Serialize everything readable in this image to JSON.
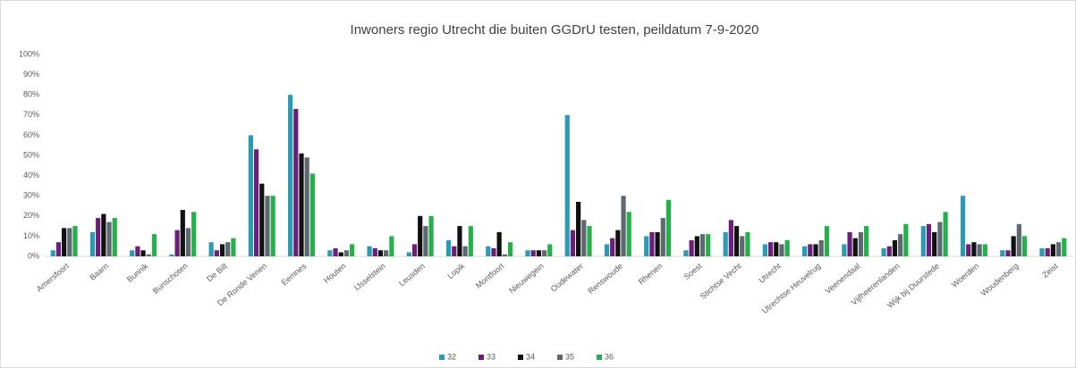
{
  "chart_data": {
    "type": "bar",
    "title": "Inwoners regio Utrecht die buiten GGDrU testen, peildatum 7-9-2020",
    "categories": [
      "Amersfoort",
      "Baarn",
      "Bunnik",
      "Bunschoten",
      "De Bilt",
      "De Ronde Venen",
      "Eemnes",
      "Houten",
      "IJsselstein",
      "Leusden",
      "Lopik",
      "Montfoort",
      "Nieuwegein",
      "Oudewater",
      "Renswoude",
      "Rhenen",
      "Soest",
      "Stichtse Vecht",
      "Utrecht",
      "Utrechtse Heuvelrug",
      "Veenendaal",
      "Vijfheerenlanden",
      "Wijk bij Duurstede",
      "Woerden",
      "Woudenberg",
      "Zeist"
    ],
    "series": [
      {
        "name": "32",
        "color": "#2b9bb3",
        "values": [
          3,
          12,
          3,
          1,
          7,
          60,
          80,
          3,
          5,
          2,
          8,
          5,
          3,
          70,
          6,
          10,
          3,
          12,
          6,
          5,
          6,
          4,
          15,
          30,
          3,
          4
        ]
      },
      {
        "name": "33",
        "color": "#6b1f78",
        "values": [
          7,
          19,
          5,
          13,
          3,
          53,
          73,
          4,
          4,
          6,
          5,
          4,
          3,
          13,
          9,
          12,
          8,
          18,
          7,
          6,
          12,
          5,
          16,
          6,
          3,
          4
        ]
      },
      {
        "name": "34",
        "color": "#111111",
        "values": [
          14,
          21,
          3,
          23,
          6,
          36,
          51,
          2,
          3,
          20,
          15,
          12,
          3,
          27,
          13,
          12,
          10,
          15,
          7,
          6,
          9,
          8,
          12,
          7,
          10,
          6
        ]
      },
      {
        "name": "35",
        "color": "#5d6870",
        "values": [
          14,
          17,
          1,
          14,
          7,
          30,
          49,
          3,
          3,
          15,
          5,
          1,
          3,
          18,
          30,
          19,
          11,
          10,
          6,
          8,
          12,
          11,
          17,
          6,
          16,
          7
        ]
      },
      {
        "name": "36",
        "color": "#25b04b",
        "values": [
          15,
          19,
          11,
          22,
          9,
          30,
          41,
          6,
          10,
          20,
          15,
          7,
          6,
          15,
          22,
          28,
          11,
          12,
          8,
          15,
          15,
          16,
          22,
          6,
          10,
          9
        ]
      }
    ],
    "ylim": [
      0,
      100
    ],
    "yticks": [
      {
        "value": 0,
        "label": "0%"
      },
      {
        "value": 10,
        "label": "10%"
      },
      {
        "value": 20,
        "label": "20%"
      },
      {
        "value": 30,
        "label": "30%"
      },
      {
        "value": 40,
        "label": "40%"
      },
      {
        "value": 50,
        "label": "50%"
      },
      {
        "value": 60,
        "label": "60%"
      },
      {
        "value": 70,
        "label": "70%"
      },
      {
        "value": 80,
        "label": "80%"
      },
      {
        "value": 90,
        "label": "90%"
      },
      {
        "value": 100,
        "label": "100%"
      }
    ],
    "grid": false,
    "legend": "bottom"
  }
}
